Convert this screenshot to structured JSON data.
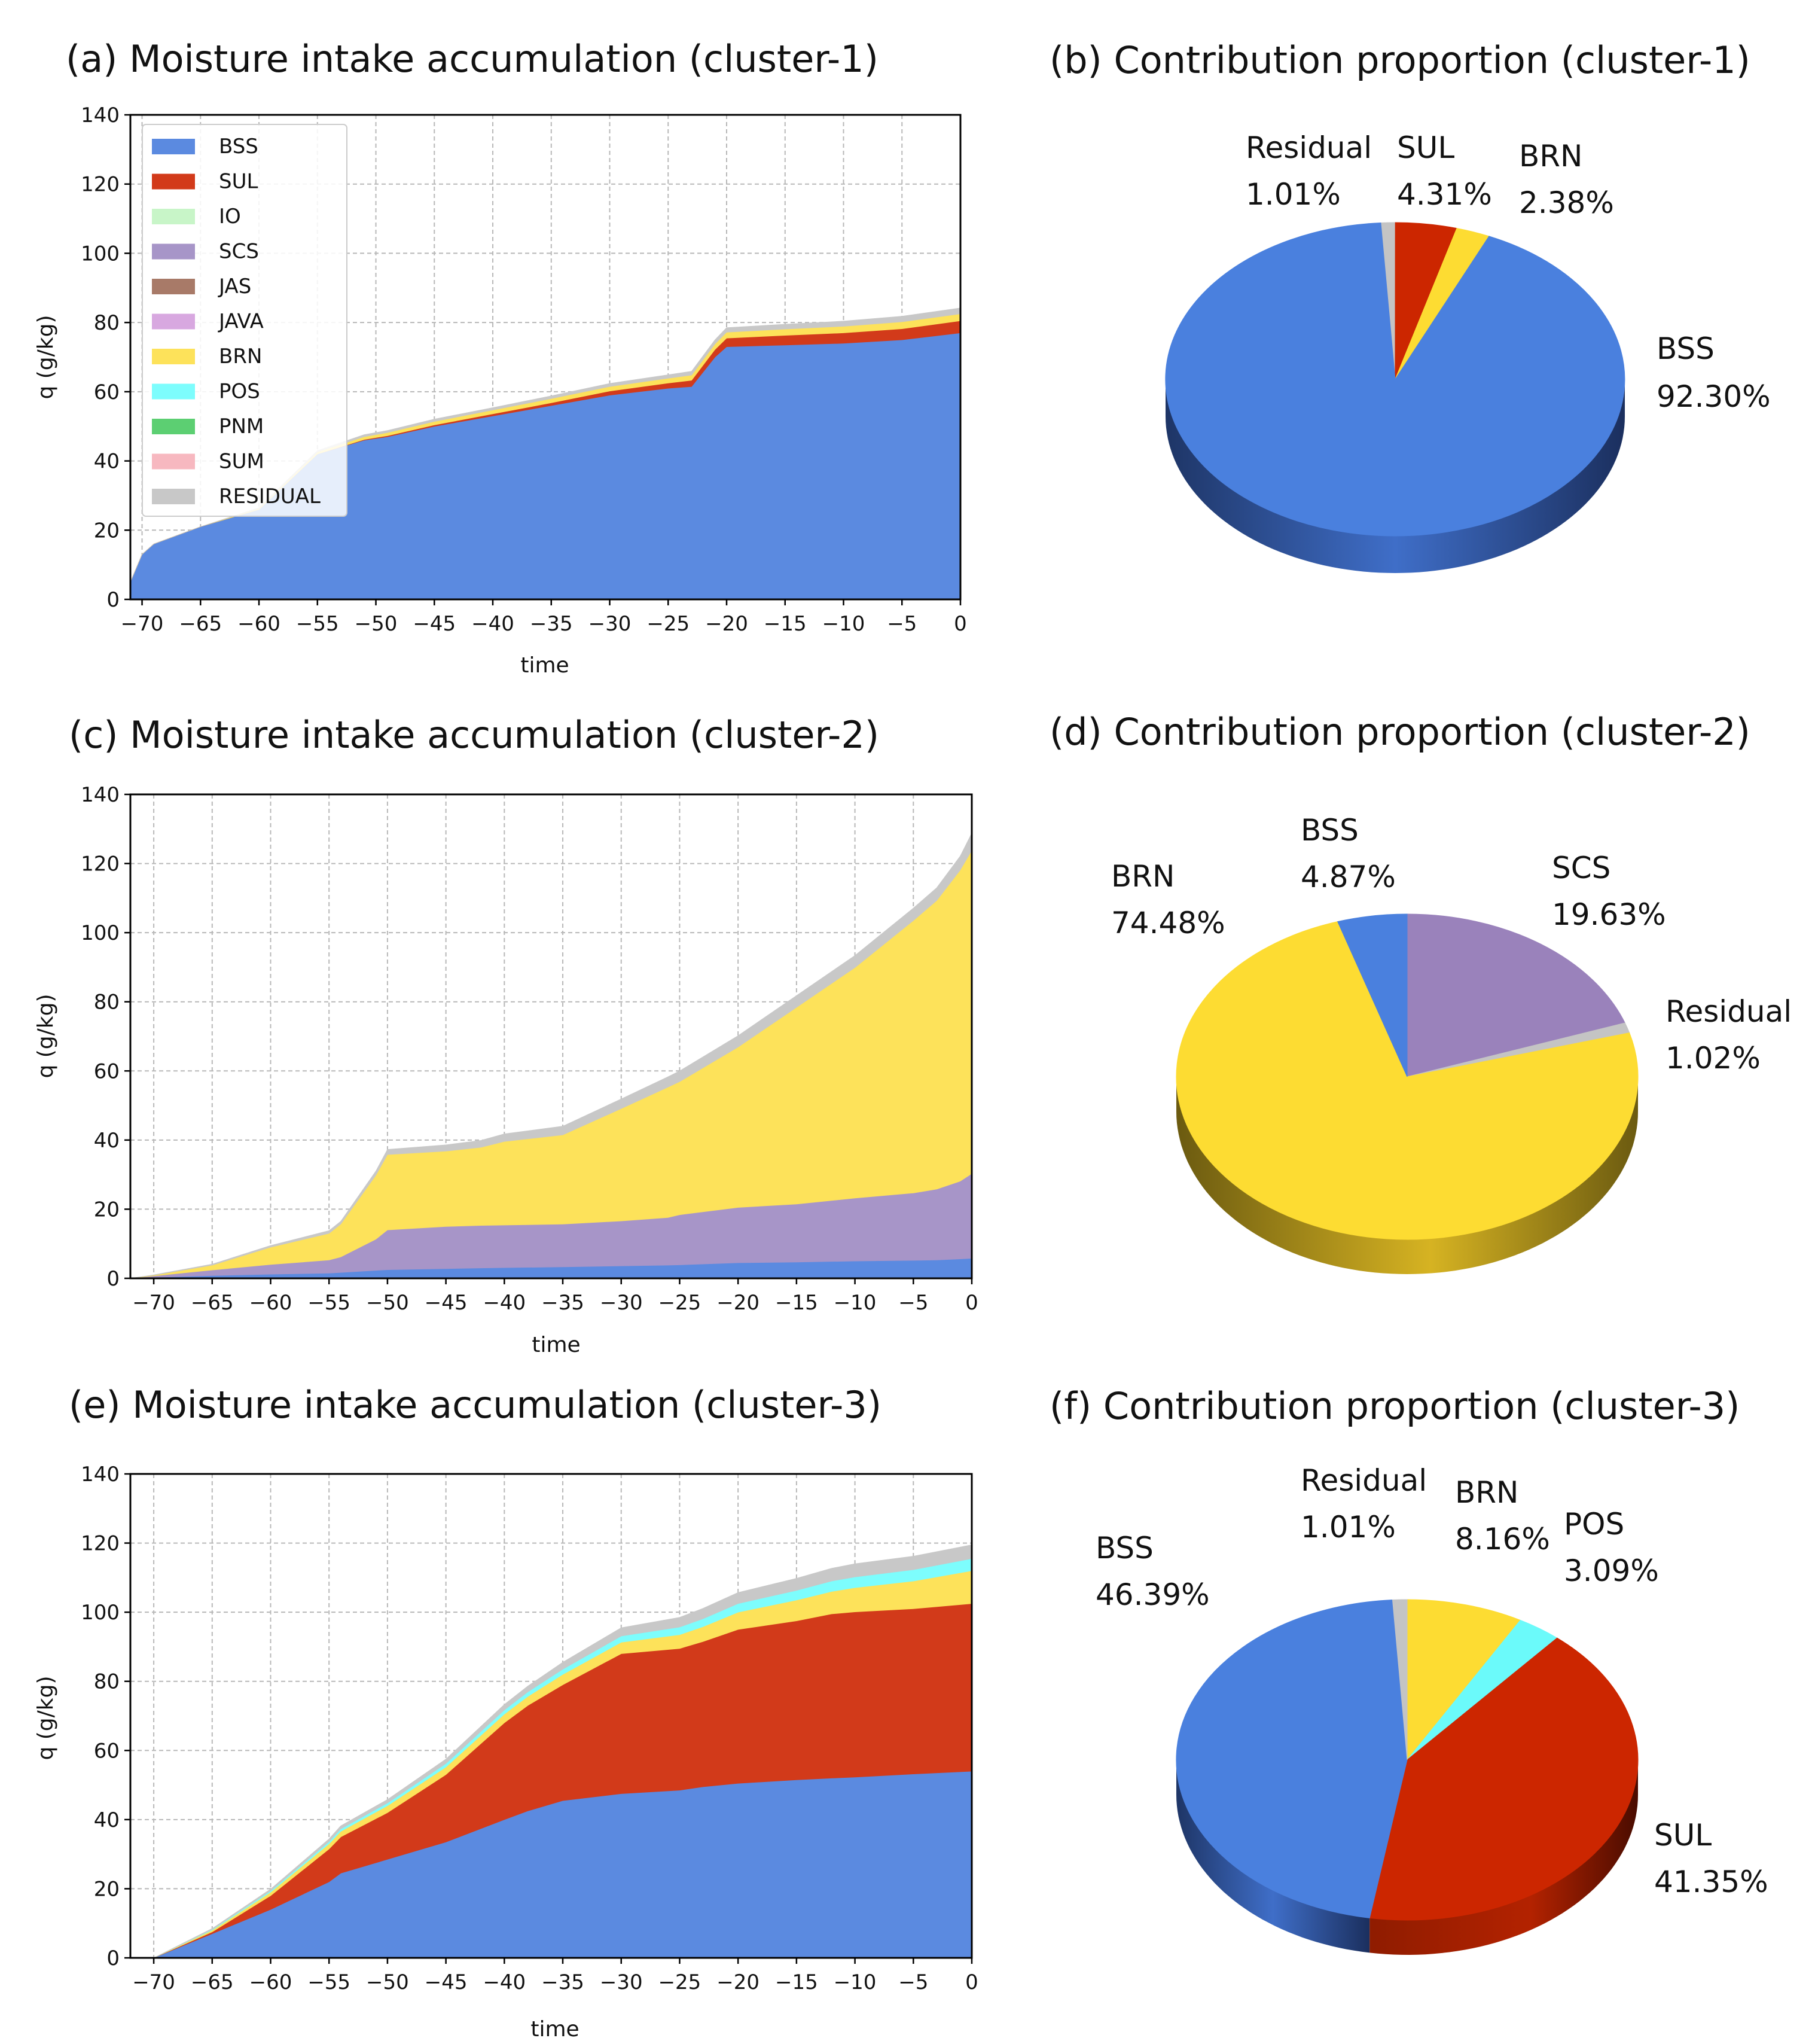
{
  "colors": {
    "BSS": "#5b8ae0",
    "SUL": "#d23a1a",
    "IO": "#c8f5c8",
    "SCS": "#a795c8",
    "JAS": "#a87a68",
    "JAVA": "#d8a8e0",
    "BRN": "#fde25a",
    "POS": "#7dfdfd",
    "PNM": "#5ccf72",
    "SUM": "#f7b8c0",
    "RESIDUAL": "#c8c8c8",
    "pie_BSS": "#4a80de",
    "pie_SUL": "#cc2600",
    "pie_BRN": "#fddc32",
    "pie_SCS": "#9a82bb",
    "pie_POS": "#6bfafa",
    "pie_Residual": "#c4c4c4"
  },
  "chart_data": [
    {
      "type": "area",
      "title": "(a) Moisture intake accumulation (cluster-1)",
      "xlabel": "time",
      "ylabel": "q (g/kg)",
      "xlim": [
        -71,
        0
      ],
      "ylim": [
        0,
        140
      ],
      "xticks": [
        "−70",
        "−65",
        "−60",
        "−55",
        "−50",
        "−45",
        "−40",
        "−35",
        "−30",
        "−25",
        "−20",
        "−15",
        "−10",
        "−5",
        "0"
      ],
      "yticks": [
        "0",
        "20",
        "40",
        "60",
        "80",
        "100",
        "120",
        "140"
      ],
      "legend": [
        "BSS",
        "SUL",
        "IO",
        "SCS",
        "JAS",
        "JAVA",
        "BRN",
        "POS",
        "PNM",
        "SUM",
        "RESIDUAL"
      ],
      "x": [
        -71,
        -70,
        -69,
        -65,
        -60,
        -55,
        -51,
        -49,
        -45,
        -40,
        -35,
        -30,
        -25,
        -23,
        -21,
        -20,
        -15,
        -10,
        -5,
        0
      ],
      "series": [
        {
          "name": "BSS",
          "values": [
            5,
            13,
            16,
            21,
            26,
            42,
            46,
            47,
            50,
            53,
            56,
            59,
            61,
            61.5,
            70,
            73,
            73.5,
            74,
            75,
            77
          ]
        },
        {
          "name": "SUL",
          "values": [
            0,
            0,
            0,
            0,
            0,
            0,
            0.2,
            0.3,
            0.4,
            0.6,
            0.8,
            1.2,
            1.5,
            1.8,
            2.2,
            2.5,
            2.8,
            3,
            3.2,
            3.5
          ]
        },
        {
          "name": "BRN",
          "values": [
            0,
            0,
            0,
            0,
            0.3,
            0.6,
            0.8,
            0.9,
            1,
            1.1,
            1.2,
            1.3,
            1.4,
            1.5,
            1.6,
            1.7,
            1.8,
            1.9,
            2,
            2
          ]
        },
        {
          "name": "RESIDUAL",
          "values": [
            0,
            0,
            0,
            0,
            0.2,
            0.4,
            0.6,
            0.6,
            0.7,
            0.7,
            0.8,
            0.9,
            1,
            1.1,
            1.2,
            1.3,
            1.4,
            1.5,
            1.6,
            1.7
          ]
        }
      ]
    },
    {
      "type": "pie",
      "title": "(b) Contribution proportion (cluster-1)",
      "slices": [
        {
          "name": "Residual",
          "label": "Residual",
          "pct": "1.01%",
          "value": 1.01
        },
        {
          "name": "SUL",
          "label": "SUL",
          "pct": "4.31%",
          "value": 4.31
        },
        {
          "name": "BRN",
          "label": "BRN",
          "pct": "2.38%",
          "value": 2.38
        },
        {
          "name": "BSS",
          "label": "BSS",
          "pct": "92.30%",
          "value": 92.3
        }
      ]
    },
    {
      "type": "area",
      "title": "(c) Moisture intake accumulation (cluster-2)",
      "xlabel": "time",
      "ylabel": "q (g/kg)",
      "xlim": [
        -72,
        0
      ],
      "ylim": [
        0,
        140
      ],
      "xticks": [
        "−70",
        "−65",
        "−60",
        "−55",
        "−50",
        "−45",
        "−40",
        "−35",
        "−30",
        "−25",
        "−20",
        "−15",
        "−10",
        "−5",
        "0"
      ],
      "yticks": [
        "0",
        "20",
        "40",
        "60",
        "80",
        "100",
        "120",
        "140"
      ],
      "x": [
        -72,
        -70,
        -65,
        -60,
        -55,
        -54,
        -51,
        -50,
        -45,
        -42,
        -40,
        -35,
        -30,
        -26,
        -25,
        -20,
        -15,
        -10,
        -5,
        -3,
        -1,
        0
      ],
      "series": [
        {
          "name": "BSS",
          "values": [
            0,
            0.3,
            0.8,
            1.2,
            1.5,
            1.7,
            2.3,
            2.5,
            2.8,
            3,
            3.1,
            3.3,
            3.6,
            3.8,
            3.9,
            4.5,
            4.7,
            5,
            5.2,
            5.3,
            5.6,
            5.8
          ]
        },
        {
          "name": "SCS",
          "values": [
            0,
            0.4,
            1.6,
            2.8,
            3.8,
            4.5,
            9,
            11.5,
            12.2,
            12.3,
            12.3,
            12.4,
            13,
            13.8,
            14.5,
            16,
            16.8,
            18.2,
            19.5,
            20.5,
            22.5,
            24.5
          ]
        },
        {
          "name": "BRN",
          "values": [
            0,
            0.2,
            1.4,
            5,
            7.7,
            9.5,
            18.5,
            21.8,
            21.8,
            22.6,
            24.2,
            25.8,
            32.5,
            37.7,
            38.5,
            46.4,
            56.9,
            66.7,
            78.8,
            83.5,
            90,
            93.5
          ]
        },
        {
          "name": "RESIDUAL",
          "values": [
            0,
            0.1,
            0.3,
            0.5,
            0.8,
            0.8,
            1.2,
            1.5,
            1.8,
            2,
            2.2,
            2.5,
            2.8,
            3,
            3.1,
            3.3,
            3.4,
            3.5,
            3.6,
            3.7,
            4,
            5
          ]
        }
      ]
    },
    {
      "type": "pie",
      "title": "(d) Contribution proportion (cluster-2)",
      "slices": [
        {
          "name": "SCS",
          "label": "SCS",
          "pct": "19.63%",
          "value": 19.63
        },
        {
          "name": "Residual",
          "label": "Residual",
          "pct": "1.02%",
          "value": 1.02
        },
        {
          "name": "BRN",
          "label": "BRN",
          "pct": "74.48%",
          "value": 74.48
        },
        {
          "name": "BSS",
          "label": "BSS",
          "pct": "4.87%",
          "value": 4.87
        }
      ]
    },
    {
      "type": "area",
      "title": "(e) Moisture intake accumulation (cluster-3)",
      "xlabel": "time",
      "ylabel": "q (g/kg)",
      "xlim": [
        -72,
        0
      ],
      "ylim": [
        0,
        140
      ],
      "xticks": [
        "−70",
        "−65",
        "−60",
        "−55",
        "−50",
        "−45",
        "−40",
        "−35",
        "−30",
        "−25",
        "−20",
        "−15",
        "−10",
        "−5",
        "0"
      ],
      "yticks": [
        "0",
        "20",
        "40",
        "60",
        "80",
        "100",
        "120",
        "140"
      ],
      "x": [
        -72,
        -70,
        -65,
        -60,
        -55,
        -54,
        -50,
        -45,
        -40,
        -38,
        -35,
        -30,
        -25,
        -23,
        -20,
        -15,
        -12,
        -10,
        -5,
        0
      ],
      "series": [
        {
          "name": "BSS",
          "values": [
            0,
            0,
            7,
            14,
            22,
            24.5,
            28.5,
            33.5,
            40,
            42.5,
            45.5,
            47.5,
            48.5,
            49.5,
            50.5,
            51.5,
            52,
            52.3,
            53.2,
            54
          ]
        },
        {
          "name": "SUL",
          "values": [
            0,
            0,
            0.5,
            4,
            9.5,
            10.5,
            13.5,
            19.5,
            28,
            30.5,
            33.5,
            40.5,
            41,
            42,
            44.5,
            46,
            47.5,
            47.8,
            47.8,
            48.5
          ]
        },
        {
          "name": "BRN",
          "values": [
            0,
            0,
            0.5,
            1,
            1.5,
            1.6,
            2,
            2.2,
            2.5,
            2.6,
            3,
            3.3,
            4,
            4.3,
            5,
            6,
            6.5,
            7,
            8,
            9.5
          ]
        },
        {
          "name": "POS",
          "values": [
            0,
            0,
            0.2,
            0.4,
            0.6,
            0.7,
            0.8,
            1,
            1.2,
            1.3,
            1.5,
            1.8,
            2.2,
            2.3,
            2.5,
            2.8,
            3,
            3.1,
            3.3,
            3.5
          ]
        },
        {
          "name": "RESIDUAL",
          "values": [
            0,
            0,
            0.3,
            0.5,
            0.8,
            0.9,
            1,
            1.3,
            1.6,
            1.7,
            2,
            2.4,
            2.8,
            3,
            3.2,
            3.5,
            3.7,
            3.8,
            3.9,
            4
          ]
        }
      ]
    },
    {
      "type": "pie",
      "title": "(f) Contribution proportion (cluster-3)",
      "slices": [
        {
          "name": "BRN",
          "label": "BRN",
          "pct": "8.16%",
          "value": 8.16
        },
        {
          "name": "POS",
          "label": "POS",
          "pct": "3.09%",
          "value": 3.09
        },
        {
          "name": "SUL",
          "label": "SUL",
          "pct": "41.35%",
          "value": 41.35
        },
        {
          "name": "BSS",
          "label": "BSS",
          "pct": "46.39%",
          "value": 46.39
        },
        {
          "name": "Residual",
          "label": "Residual",
          "pct": "1.01%",
          "value": 1.01
        }
      ]
    }
  ]
}
